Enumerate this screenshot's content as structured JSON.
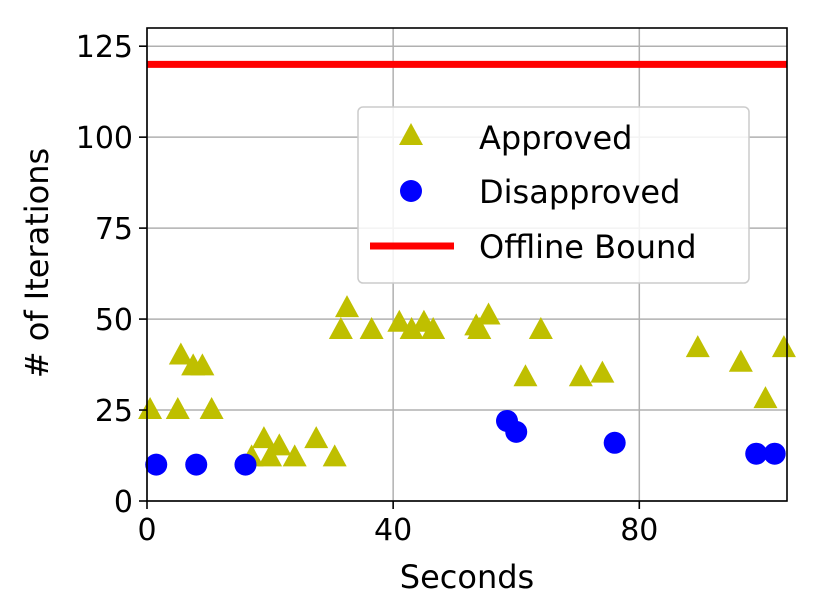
{
  "chart_data": {
    "type": "scatter",
    "title": "",
    "xlabel": "Seconds",
    "ylabel": "# of Iterations",
    "xlim": [
      0,
      104
    ],
    "ylim": [
      0,
      130
    ],
    "xticks": [
      0,
      40,
      80
    ],
    "yticks": [
      0,
      25,
      50,
      75,
      100,
      125
    ],
    "xtick_labels": [
      "0",
      "40",
      "80"
    ],
    "ytick_labels": [
      "0",
      "25",
      "50",
      "75",
      "100",
      "125"
    ],
    "grid": true,
    "legend_position": "center-right",
    "series": [
      {
        "name": "Approved",
        "marker": "triangle",
        "color": "#bfbf00",
        "points": [
          [
            0.5,
            25
          ],
          [
            5,
            25
          ],
          [
            5.5,
            40
          ],
          [
            7.5,
            37
          ],
          [
            9,
            37
          ],
          [
            10.5,
            25
          ],
          [
            17,
            12
          ],
          [
            19,
            17
          ],
          [
            20,
            12
          ],
          [
            21.5,
            15
          ],
          [
            24,
            12
          ],
          [
            27.5,
            17
          ],
          [
            30.5,
            12
          ],
          [
            31.5,
            47
          ],
          [
            32.5,
            53
          ],
          [
            36.5,
            47
          ],
          [
            41,
            49
          ],
          [
            43,
            47
          ],
          [
            45,
            49
          ],
          [
            46.5,
            47
          ],
          [
            53.5,
            48
          ],
          [
            54,
            47
          ],
          [
            55.5,
            51
          ],
          [
            61.5,
            34
          ],
          [
            64,
            47
          ],
          [
            70.5,
            34
          ],
          [
            74,
            35
          ],
          [
            89.5,
            42
          ],
          [
            96.5,
            38
          ],
          [
            100.5,
            28
          ],
          [
            103.5,
            42
          ]
        ]
      },
      {
        "name": "Disapproved",
        "marker": "circle",
        "color": "#0000ff",
        "points": [
          [
            1.5,
            10
          ],
          [
            8,
            10
          ],
          [
            16,
            10
          ],
          [
            58.5,
            22
          ],
          [
            60,
            19
          ],
          [
            76,
            16
          ],
          [
            99,
            13
          ],
          [
            102,
            13
          ]
        ]
      },
      {
        "name": "Offline Bound",
        "marker": "line",
        "color": "#ff0000",
        "y": 120
      }
    ]
  }
}
